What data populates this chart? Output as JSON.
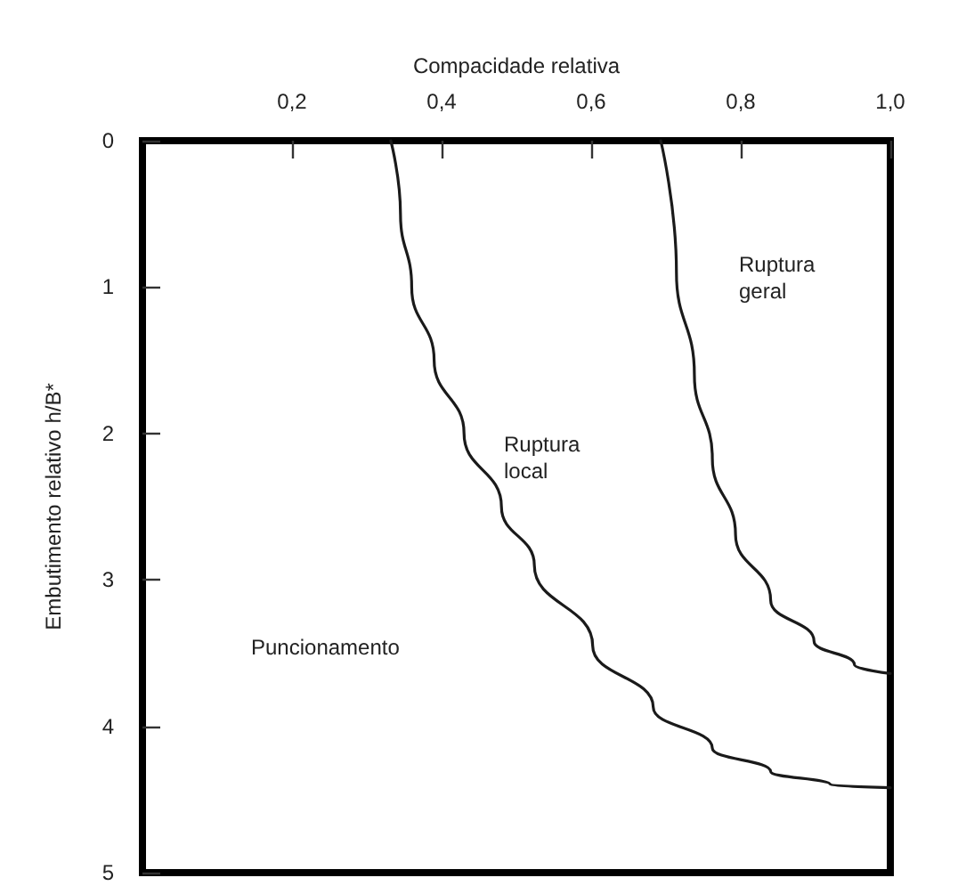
{
  "chart_data": {
    "type": "line",
    "xlabel": "Compacidade relativa",
    "ylabel": "Embutimento relativo h/B*",
    "xlim": [
      0,
      1
    ],
    "xticks": [
      {
        "value": 0.2,
        "label": "0,2"
      },
      {
        "value": 0.4,
        "label": "0,4"
      },
      {
        "value": 0.6,
        "label": "0,6"
      },
      {
        "value": 0.8,
        "label": "0,8"
      },
      {
        "value": 1,
        "label": "1,0"
      }
    ],
    "ylim": [
      5,
      0
    ],
    "yticks": [
      0,
      1,
      2,
      3,
      4,
      5
    ],
    "grid": false,
    "marker": "none",
    "line_style": "solid",
    "series": [
      {
        "color": "#1a1a1a",
        "x": [
          0.332,
          0.345,
          0.36,
          0.39,
          0.43,
          0.48,
          0.524,
          0.602,
          0.683,
          0.762,
          0.84,
          0.92,
          1.0
        ],
        "values": [
          0,
          0.5,
          1,
          1.5,
          2,
          2.5,
          2.9,
          3.45,
          3.87,
          4.15,
          4.31,
          4.4,
          4.42
        ]
      },
      {
        "color": "#1a1a1a",
        "x": [
          0.693,
          0.714,
          0.738,
          0.762,
          0.793,
          0.84,
          0.898,
          0.952,
          1.0
        ],
        "values": [
          0,
          0.9,
          1.6,
          2.17,
          2.69,
          3.14,
          3.42,
          3.58,
          3.64
        ]
      }
    ],
    "annotations": [
      "Ruptura\ngeral",
      "Ruptura\nlocal",
      "Puncionamento"
    ]
  }
}
